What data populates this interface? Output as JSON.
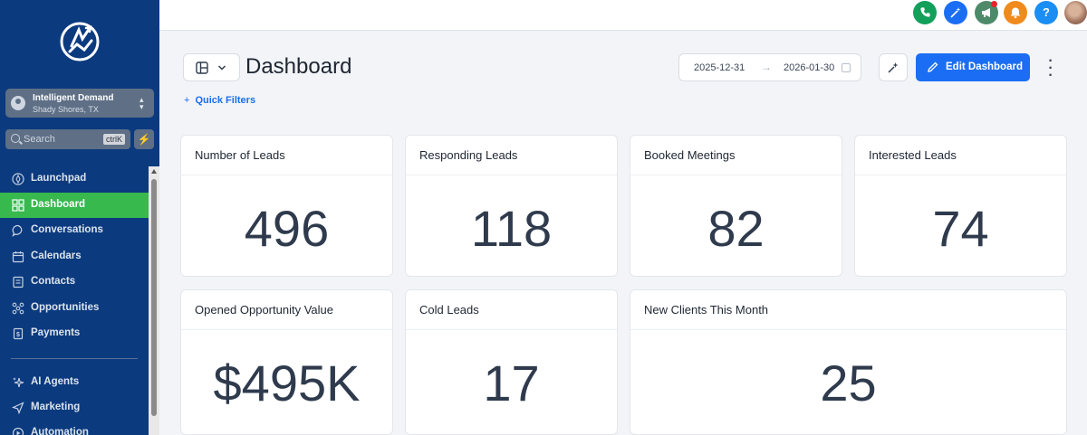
{
  "sidebar": {
    "account": {
      "name": "Intelligent Demand",
      "location": "Shady Shores, TX"
    },
    "search": {
      "placeholder": "Search",
      "shortcut": "ctrlK"
    },
    "items": [
      {
        "label": "Launchpad",
        "icon": "rocket-icon",
        "active": false
      },
      {
        "label": "Dashboard",
        "icon": "dashboard-grid-icon",
        "active": true
      },
      {
        "label": "Conversations",
        "icon": "chat-bubble-icon",
        "active": false
      },
      {
        "label": "Calendars",
        "icon": "calendar-icon",
        "active": false
      },
      {
        "label": "Contacts",
        "icon": "contacts-icon",
        "active": false
      },
      {
        "label": "Opportunities",
        "icon": "opportunities-icon",
        "active": false
      },
      {
        "label": "Payments",
        "icon": "payments-icon",
        "active": false
      },
      {
        "label": "AI Agents",
        "icon": "sparkle-icon",
        "active": false
      },
      {
        "label": "Marketing",
        "icon": "send-icon",
        "active": false
      },
      {
        "label": "Automation",
        "icon": "automation-icon",
        "active": false
      }
    ]
  },
  "topbar": {
    "icons": [
      "phone-icon",
      "magic-wand-icon",
      "megaphone-icon",
      "bell-icon",
      "help-icon",
      "user-avatar"
    ],
    "colors": {
      "phone": "#12a05a",
      "wand": "#1b6ef3",
      "megaphone": "#4d8a6a",
      "bell": "#f08a1c",
      "help": "#1b8ef3"
    }
  },
  "header": {
    "title": "Dashboard",
    "date_start": "2025-12-31",
    "date_end": "2026-01-30",
    "edit_label": "Edit Dashboard",
    "quick_filters": "Quick Filters"
  },
  "cards": [
    {
      "title": "Number of Leads",
      "value": "496"
    },
    {
      "title": "Responding Leads",
      "value": "118"
    },
    {
      "title": "Booked Meetings",
      "value": "82"
    },
    {
      "title": "Interested Leads",
      "value": "74"
    },
    {
      "title": "Opened Opportunity Value",
      "value": "$495K"
    },
    {
      "title": "Cold Leads",
      "value": "17"
    },
    {
      "title": "New Clients This Month",
      "value": "25"
    }
  ],
  "colors": {
    "sidebar": "#0b3a7e",
    "accent_green": "#37b94e",
    "primary_blue": "#1b6ef3"
  }
}
